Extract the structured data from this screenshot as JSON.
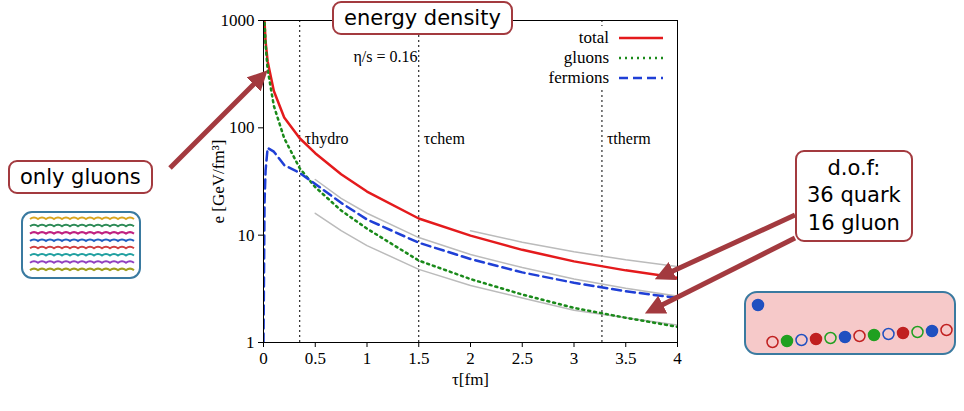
{
  "chart_data": {
    "type": "line",
    "title": "energy density",
    "x_label": "τ[fm]",
    "y_label": "e [GeV/fm³]",
    "x": [
      0,
      0.01,
      0.02,
      0.04,
      0.1,
      0.2,
      0.35,
      0.5,
      0.75,
      1,
      1.5,
      2,
      2.5,
      3,
      3.5,
      4
    ],
    "series": [
      {
        "name": "total",
        "color": "#e41a1c",
        "line_style": "solid",
        "values": [
          null,
          980,
          640,
          415,
          220,
          125,
          80,
          58,
          37,
          25.5,
          14.3,
          9.9,
          7.3,
          5.7,
          4.7,
          4.0
        ]
      },
      {
        "name": "gluons",
        "color": "#1a8a1a",
        "line_style": "dotted",
        "values": [
          null,
          950,
          600,
          350,
          160,
          80,
          42,
          28,
          17,
          11.5,
          5.8,
          3.9,
          2.8,
          2.1,
          1.7,
          1.4
        ]
      },
      {
        "name": "fermions",
        "color": "#1f3fd6",
        "line_style": "dashed",
        "values": [
          1,
          20,
          40,
          65,
          60,
          45,
          38,
          30,
          20,
          14,
          8.5,
          6,
          4.5,
          3.6,
          3.0,
          2.6
        ]
      },
      {
        "name": null,
        "color": "#bbbbbb",
        "line_style": "solid",
        "values": [
          null,
          null,
          null,
          null,
          null,
          null,
          null,
          null,
          null,
          null,
          null,
          11,
          8.6,
          7.0,
          5.9,
          5.1
        ]
      },
      {
        "name": null,
        "color": "#bbbbbb",
        "line_style": "solid",
        "values": [
          null,
          null,
          null,
          null,
          null,
          null,
          null,
          33,
          22,
          16,
          9.5,
          6.6,
          5.0,
          3.9,
          3.2,
          2.7
        ]
      },
      {
        "name": null,
        "color": "#bbbbbb",
        "line_style": "solid",
        "values": [
          null,
          null,
          null,
          null,
          null,
          null,
          null,
          16,
          11,
          8,
          4.8,
          3.4,
          2.6,
          2.0,
          1.7,
          1.45
        ]
      }
    ],
    "xlim": [
      0,
      4
    ],
    "ylim": [
      1,
      1000
    ],
    "xticks": [
      0,
      0.5,
      1,
      1.5,
      2,
      2.5,
      3,
      3.5,
      4
    ],
    "yticks": [
      1,
      10,
      100,
      1000
    ],
    "log": "y",
    "grid": false,
    "legend": "top-right",
    "vlines": [
      {
        "x": 0.35,
        "label": "τhydro"
      },
      {
        "x": 1.5,
        "label": "τchem"
      },
      {
        "x": 3.27,
        "label": "τtherm"
      }
    ],
    "annotations": [
      "η/s = 0.16",
      "only gluons",
      "d.o.f:\n36 quark\n16 gluon"
    ]
  }
}
